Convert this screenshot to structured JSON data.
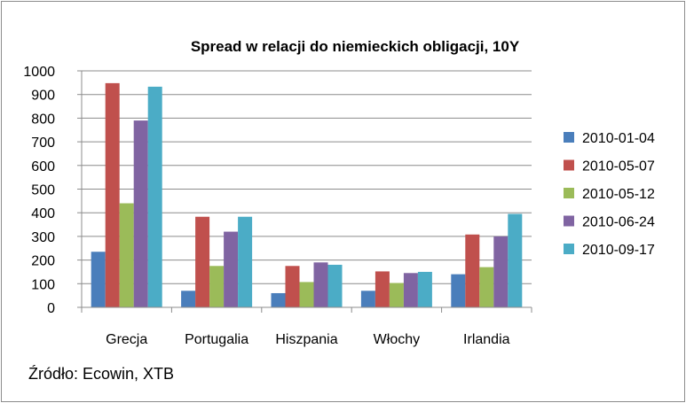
{
  "chart_data": {
    "type": "bar",
    "title": "Spread w relacji do niemieckich obligacji, 10Y",
    "categories": [
      "Grecja",
      "Portugalia",
      "Hiszpania",
      "Włochy",
      "Irlandia"
    ],
    "series": [
      {
        "name": "2010-01-04",
        "color": "#4a7ebb",
        "values": [
          235,
          70,
          60,
          70,
          140
        ]
      },
      {
        "name": "2010-05-07",
        "color": "#c0504d",
        "values": [
          948,
          383,
          175,
          152,
          308
        ]
      },
      {
        "name": "2010-05-12",
        "color": "#9bbb59",
        "values": [
          440,
          175,
          107,
          103,
          170
        ]
      },
      {
        "name": "2010-06-24",
        "color": "#8064a2",
        "values": [
          790,
          320,
          190,
          145,
          300
        ]
      },
      {
        "name": "2010-09-17",
        "color": "#4bacc6",
        "values": [
          933,
          383,
          180,
          150,
          395
        ]
      }
    ],
    "ylim": [
      0,
      1000
    ],
    "yticks": [
      0,
      100,
      200,
      300,
      400,
      500,
      600,
      700,
      800,
      900,
      1000
    ],
    "grid": true,
    "legend": "right"
  },
  "source": "Źródło: Ecowin, XTB"
}
